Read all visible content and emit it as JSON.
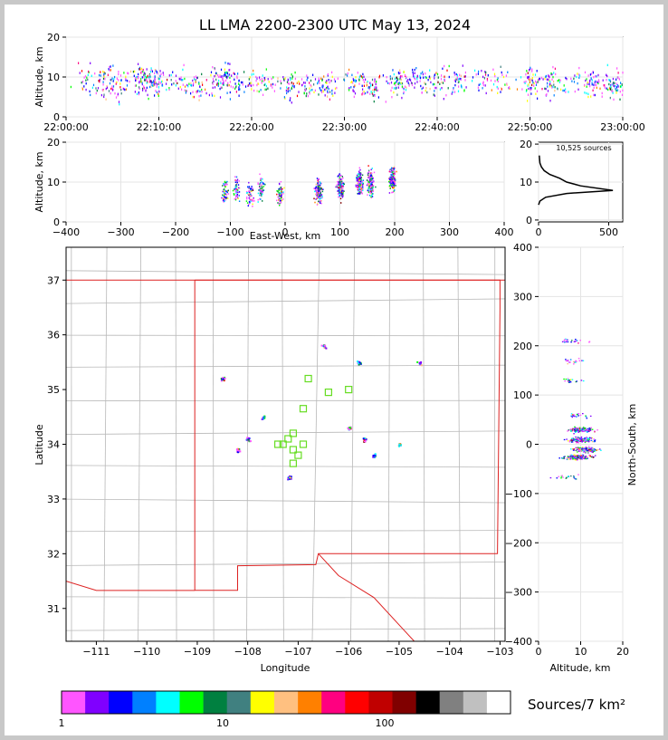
{
  "title": "LL LMA 2200-2300 UTC May 13, 2024",
  "time_panel": {
    "ylabel": "Altitude, km",
    "x_ticks": [
      "22:00:00",
      "22:10:00",
      "22:20:00",
      "22:30:00",
      "22:40:00",
      "22:50:00",
      "23:00:00"
    ],
    "y_ticks": [
      "0",
      "10",
      "20"
    ]
  },
  "ew_panel": {
    "xlabel": "East-West, km",
    "ylabel": "Altitude, km",
    "x_ticks": [
      "−400",
      "−300",
      "−200",
      "−100",
      "0",
      "100",
      "200",
      "300",
      "400"
    ],
    "y_ticks": [
      "0",
      "10",
      "20"
    ]
  },
  "hist_panel": {
    "count_label": "10,525 sources",
    "x_ticks": [
      "0",
      "500"
    ],
    "y_ticks": [
      "0",
      "10",
      "20"
    ]
  },
  "map_panel": {
    "xlabel": "Longitude",
    "ylabel": "Latitude",
    "x_ticks": [
      "−111",
      "−110",
      "−109",
      "−108",
      "−107",
      "−106",
      "−105",
      "−104",
      "−103"
    ],
    "y_ticks": [
      "31",
      "32",
      "33",
      "34",
      "35",
      "36",
      "37"
    ]
  },
  "ns_panel": {
    "xlabel": "Altitude, km",
    "ylabel": "North-South, km",
    "x_ticks": [
      "0",
      "10",
      "20"
    ],
    "y_ticks": [
      "−400",
      "−300",
      "−200",
      "−100",
      "0",
      "100",
      "200",
      "300",
      "400"
    ]
  },
  "colorbar": {
    "label": "Sources/7 km²",
    "tick_labels": [
      "1",
      "10",
      "100"
    ],
    "colors": [
      "#ff55ff",
      "#8000ff",
      "#0000ff",
      "#0080ff",
      "#00ffff",
      "#00ff00",
      "#008040",
      "#408080",
      "#ffff00",
      "#ffc080",
      "#ff8000",
      "#ff0080",
      "#ff0000",
      "#c00000",
      "#800000",
      "#000000",
      "#808080",
      "#c0c0c0",
      "#ffffff"
    ]
  },
  "chart_data": [
    {
      "type": "scatter",
      "panel": "altitude-time",
      "xlabel": "",
      "ylabel": "Altitude, km",
      "xlim": [
        "22:00:00",
        "23:00:00"
      ],
      "ylim": [
        0,
        20
      ],
      "x_unit": "minutes after 22:00 UTC",
      "points": [
        [
          2,
          9
        ],
        [
          4,
          9
        ],
        [
          6,
          8
        ],
        [
          8,
          10
        ],
        [
          9,
          9
        ],
        [
          10,
          9
        ],
        [
          12,
          9
        ],
        [
          14,
          8
        ],
        [
          16,
          9
        ],
        [
          17,
          10
        ],
        [
          19,
          8
        ],
        [
          21,
          9
        ],
        [
          24,
          8
        ],
        [
          26,
          8
        ],
        [
          28,
          8
        ],
        [
          31,
          9
        ],
        [
          33,
          8
        ],
        [
          35,
          9
        ],
        [
          36,
          9
        ],
        [
          38,
          10
        ],
        [
          40,
          9
        ],
        [
          42,
          9
        ],
        [
          45,
          9
        ],
        [
          47,
          9
        ],
        [
          50,
          9
        ],
        [
          52,
          9
        ],
        [
          55,
          9
        ],
        [
          57,
          9
        ],
        [
          59,
          8
        ]
      ]
    },
    {
      "type": "scatter",
      "panel": "altitude-eastwest",
      "xlabel": "East-West, km",
      "ylabel": "Altitude, km",
      "xlim": [
        -400,
        400
      ],
      "ylim": [
        0,
        20
      ],
      "points": [
        [
          -110,
          8
        ],
        [
          -90,
          8
        ],
        [
          -65,
          7
        ],
        [
          -45,
          8
        ],
        [
          -10,
          7
        ],
        [
          60,
          8
        ],
        [
          100,
          9
        ],
        [
          135,
          10
        ],
        [
          155,
          10
        ],
        [
          195,
          11
        ]
      ]
    },
    {
      "type": "line",
      "panel": "altitude-histogram",
      "xlabel": "",
      "ylabel": "",
      "xlim": [
        0,
        600
      ],
      "ylim": [
        0,
        20
      ],
      "points": [
        [
          0,
          4
        ],
        [
          10,
          5
        ],
        [
          50,
          6
        ],
        [
          200,
          7
        ],
        [
          530,
          7.8
        ],
        [
          300,
          9
        ],
        [
          200,
          10
        ],
        [
          150,
          11
        ],
        [
          80,
          12
        ],
        [
          40,
          13
        ],
        [
          20,
          14
        ],
        [
          10,
          15
        ],
        [
          5,
          17
        ]
      ]
    },
    {
      "type": "scatter",
      "panel": "plan-view",
      "xlabel": "Longitude",
      "ylabel": "Latitude",
      "xlim": [
        -111.6,
        -102.9
      ],
      "ylim": [
        30.4,
        37.6
      ],
      "points": [
        [
          -108.5,
          35.2
        ],
        [
          -108.2,
          33.9
        ],
        [
          -108,
          34.1
        ],
        [
          -107.7,
          34.5
        ],
        [
          -107.2,
          33.4
        ],
        [
          -106.5,
          35.8
        ],
        [
          -106,
          34.3
        ],
        [
          -105.8,
          35.5
        ],
        [
          -105.7,
          34.1
        ],
        [
          -105.5,
          33.8
        ],
        [
          -105,
          34
        ],
        [
          -104.6,
          35.5
        ]
      ],
      "stations": [
        [
          -106.8,
          35.2
        ],
        [
          -106.4,
          34.95
        ],
        [
          -106.0,
          35.0
        ],
        [
          -106.9,
          34.65
        ],
        [
          -107.2,
          34.1
        ],
        [
          -107.1,
          34.2
        ],
        [
          -107.3,
          34.0
        ],
        [
          -107.1,
          33.9
        ],
        [
          -107.0,
          33.8
        ],
        [
          -107.1,
          33.65
        ],
        [
          -106.9,
          34.0
        ],
        [
          -107.4,
          34.0
        ]
      ]
    },
    {
      "type": "scatter",
      "panel": "northsouth-altitude",
      "xlabel": "Altitude, km",
      "ylabel": "North-South, km",
      "xlim": [
        0,
        20
      ],
      "ylim": [
        -400,
        400
      ],
      "points": [
        [
          8,
          210
        ],
        [
          8,
          170
        ],
        [
          8,
          130
        ],
        [
          9,
          60
        ],
        [
          10,
          30
        ],
        [
          10,
          10
        ],
        [
          11,
          -10
        ],
        [
          9,
          -25
        ],
        [
          7,
          -65
        ]
      ]
    }
  ]
}
